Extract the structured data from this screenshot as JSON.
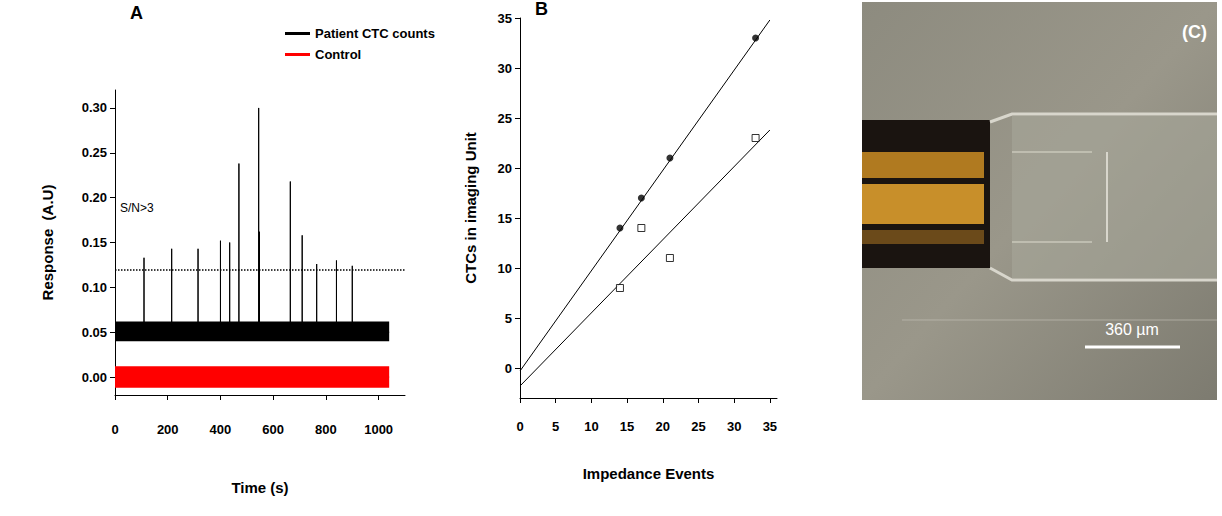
{
  "chart_data": [
    {
      "type": "line",
      "panel": "A",
      "x_label": "Time (s)",
      "y_label": "Response  (A.U)",
      "xlim": [
        0,
        1100
      ],
      "xticks": [
        0,
        200,
        400,
        600,
        800,
        1000
      ],
      "ylim": [
        -0.02,
        0.32
      ],
      "yticks": [
        {
          "value": 0,
          "label": "0.00"
        },
        {
          "value": 0.05,
          "label": "0.05"
        },
        {
          "value": 0.1,
          "label": "0.10"
        },
        {
          "value": 0.15,
          "label": "0.15"
        },
        {
          "value": 0.2,
          "label": "0.20"
        },
        {
          "value": 0.25,
          "label": "0.25"
        },
        {
          "value": 0.3,
          "label": "0.30"
        }
      ],
      "grid": false,
      "legend": "top-right",
      "annotations": [
        {
          "text": "S/N>3",
          "y": 0.115,
          "line_style": "dotted"
        }
      ],
      "series": [
        {
          "name": "Patient CTC counts",
          "color": "#000000",
          "time_range": [
            0,
            1040
          ],
          "baseline": 0.05,
          "noise_band": [
            0.04,
            0.062
          ],
          "x": [
            110,
            215,
            315,
            400,
            435,
            470,
            545,
            548,
            665,
            710,
            765,
            840,
            900
          ],
          "values": [
            0.133,
            0.143,
            0.143,
            0.152,
            0.15,
            0.238,
            0.3,
            0.162,
            0.218,
            0.158,
            0.126,
            0.13,
            0.124
          ]
        },
        {
          "name": "Control",
          "color": "#ff0000",
          "time_range": [
            0,
            1040
          ],
          "baseline": 0,
          "noise_band": [
            -0.012,
            0.012
          ],
          "x": [],
          "values": []
        }
      ]
    },
    {
      "type": "scatter",
      "panel": "B",
      "x_label": "Impedance Events",
      "y_label": "CTCs in imaging Unit",
      "xlim": [
        0,
        36
      ],
      "xticks": [
        0,
        5,
        10,
        15,
        20,
        25,
        30,
        35
      ],
      "ylim": [
        -3,
        35
      ],
      "yticks": [
        0,
        5,
        10,
        15,
        20,
        25,
        30,
        35
      ],
      "grid": false,
      "series": [
        {
          "color": "#000000",
          "marker": "circle",
          "x": [
            14,
            17,
            21,
            33
          ],
          "values": [
            14,
            17,
            21,
            33
          ],
          "fit_line": {
            "x": [
              0,
              35
            ],
            "values": [
              -0.3,
              34.8
            ]
          }
        },
        {
          "color": "#000000",
          "marker": "open-square",
          "x": [
            14,
            17,
            21,
            33
          ],
          "values": [
            8,
            14,
            11,
            23
          ],
          "fit_line": {
            "x": [
              0,
              35
            ],
            "values": [
              -1.8,
              23.8
            ]
          }
        }
      ]
    }
  ],
  "photo": {
    "label": "(C)",
    "scale_bar": "360 µm"
  }
}
